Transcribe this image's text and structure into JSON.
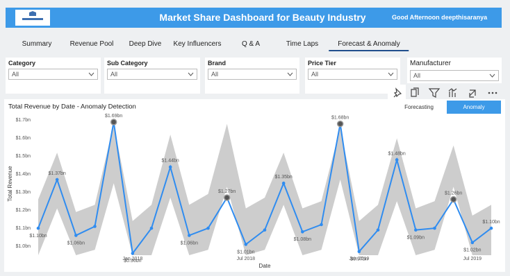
{
  "header": {
    "title": "Market Share Dashboard for Beauty Industry",
    "greeting": "Good Afternoon deepthisaranya"
  },
  "tabs": [
    "Summary",
    "Revenue Pool",
    "Deep Dive",
    "Key Influencers",
    "Q & A",
    "Time Laps",
    "Forecast & Anomaly"
  ],
  "filters": [
    {
      "label": "Category",
      "value": "All"
    },
    {
      "label": "Sub Category",
      "value": "All"
    },
    {
      "label": "Brand",
      "value": "All"
    },
    {
      "label": "Price Tier",
      "value": "All"
    },
    {
      "label": "Manufacturer",
      "value": "All"
    }
  ],
  "buttons": [
    "Forecasting",
    "Anomaly"
  ],
  "chart_data": {
    "type": "line",
    "title": "Total Revenue by Date - Anomaly Detection",
    "x_label": "Date",
    "y_label": "Total Revenue",
    "x": [
      "2017-08",
      "2017-09",
      "2017-10",
      "2017-11",
      "2017-12",
      "2018-01",
      "2018-02",
      "2018-03",
      "2018-04",
      "2018-05",
      "2018-06",
      "2018-07",
      "2018-08",
      "2018-09",
      "2018-10",
      "2018-11",
      "2018-12",
      "2019-01",
      "2019-02",
      "2019-03",
      "2019-04",
      "2019-05",
      "2019-06",
      "2019-07",
      "2019-08"
    ],
    "values": [
      1.1,
      1.37,
      1.06,
      1.11,
      1.69,
      0.96,
      1.1,
      1.44,
      1.06,
      1.1,
      1.27,
      1.01,
      1.09,
      1.35,
      1.08,
      1.12,
      1.68,
      0.97,
      1.09,
      1.48,
      1.09,
      1.1,
      1.26,
      1.02,
      1.1
    ],
    "value_labels": [
      "$1.10bn",
      "$1.37bn",
      "$1.06bn",
      null,
      "$1.69bn",
      "$0.96bn",
      null,
      "$1.44bn",
      "$1.06bn",
      null,
      "$1.27bn",
      "$1.01bn",
      null,
      "$1.35bn",
      "$1.08bn",
      null,
      "$1.68bn",
      "$0.97bn",
      null,
      "$1.48bn",
      "$1.09bn",
      null,
      "$1.26bn",
      "$1.02bn",
      "$1.10bn"
    ],
    "color": "#2f8cf0",
    "band": {
      "color": "#cdcdcd",
      "upper": [
        1.26,
        1.52,
        1.19,
        1.23,
        1.68,
        1.14,
        1.23,
        1.62,
        1.23,
        1.29,
        1.68,
        1.21,
        1.27,
        1.52,
        1.21,
        1.25,
        1.66,
        1.14,
        1.23,
        1.6,
        1.21,
        1.25,
        1.56,
        1.17,
        1.23
      ],
      "lower": [
        0.95,
        1.21,
        0.95,
        0.98,
        1.35,
        0.95,
        0.95,
        1.27,
        0.95,
        0.98,
        1.33,
        0.95,
        0.98,
        1.23,
        0.95,
        0.98,
        1.37,
        0.95,
        0.95,
        1.25,
        0.95,
        0.98,
        1.33,
        0.95,
        0.95
      ]
    },
    "anomaly_color": "#555555",
    "xlim": [
      "2017-08",
      "2019-08"
    ],
    "xticks": [
      {
        "value": "2018-01",
        "label": "Jan 2018"
      },
      {
        "value": "2018-07",
        "label": "Jul 2018"
      },
      {
        "value": "2019-01",
        "label": "Jan 2019"
      },
      {
        "value": "2019-07",
        "label": "Jul 2019"
      }
    ],
    "ylim": [
      0.95,
      1.74
    ],
    "yticks": [
      {
        "value": 1.0,
        "label": "$1.0bn"
      },
      {
        "value": 1.1,
        "label": "$1.1bn"
      },
      {
        "value": 1.2,
        "label": "$1.2bn"
      },
      {
        "value": 1.3,
        "label": "$1.3bn"
      },
      {
        "value": 1.4,
        "label": "$1.4bn"
      },
      {
        "value": 1.5,
        "label": "$1.5bn"
      },
      {
        "value": 1.6,
        "label": "$1.6bn"
      },
      {
        "value": 1.7,
        "label": "$1.7bn"
      }
    ],
    "grid": false
  }
}
